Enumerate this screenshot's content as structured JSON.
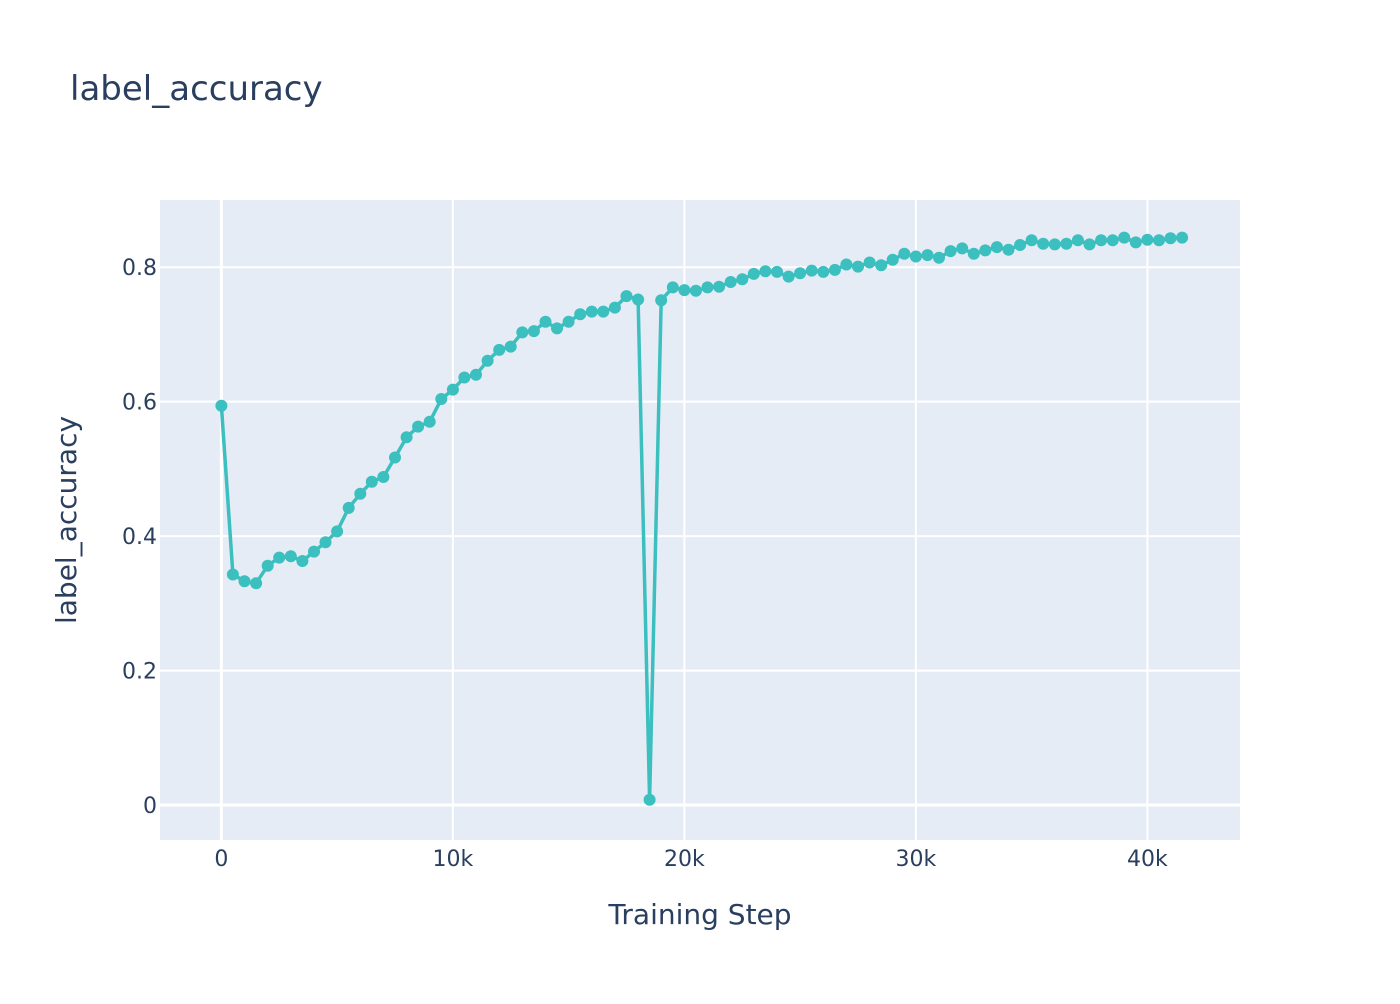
{
  "chart_data": {
    "type": "line",
    "title": "label_accuracy",
    "xlabel": "Training Step",
    "ylabel": "label_accuracy",
    "xlim": [
      -2650,
      44000
    ],
    "ylim": [
      -0.052,
      0.9
    ],
    "x_ticks": [
      0,
      10000,
      20000,
      30000,
      40000
    ],
    "x_tick_labels": [
      "0",
      "10k",
      "20k",
      "30k",
      "40k"
    ],
    "y_ticks": [
      0,
      0.2,
      0.4,
      0.6,
      0.8
    ],
    "y_tick_labels": [
      "0",
      "0.2",
      "0.4",
      "0.6",
      "0.8"
    ],
    "grid": true,
    "plot_background": "#e5ecf6",
    "grid_color": "#ffffff",
    "series": [
      {
        "mode": "lines+markers",
        "color": "#3bbfbf",
        "x": [
          0,
          500,
          1000,
          1500,
          2000,
          2500,
          3000,
          3500,
          4000,
          4500,
          5000,
          5500,
          6000,
          6500,
          7000,
          7500,
          8000,
          8500,
          9000,
          9500,
          10000,
          10500,
          11000,
          11500,
          12000,
          12500,
          13000,
          13500,
          14000,
          14500,
          15000,
          15500,
          16000,
          16500,
          17000,
          17500,
          18000,
          18500,
          19000,
          19500,
          20000,
          20500,
          21000,
          21500,
          22000,
          22500,
          23000,
          23500,
          24000,
          24500,
          25000,
          25500,
          26000,
          26500,
          27000,
          27500,
          28000,
          28500,
          29000,
          29500,
          30000,
          30500,
          31000,
          31500,
          32000,
          32500,
          33000,
          33500,
          34000,
          34500,
          35000,
          35500,
          36000,
          36500,
          37000,
          37500,
          38000,
          38500,
          39000,
          39500,
          40000,
          40500,
          41000,
          41500
        ],
        "y": [
          0.594,
          0.343,
          0.333,
          0.33,
          0.356,
          0.368,
          0.37,
          0.363,
          0.377,
          0.391,
          0.407,
          0.442,
          0.463,
          0.481,
          0.488,
          0.517,
          0.547,
          0.563,
          0.57,
          0.604,
          0.618,
          0.636,
          0.64,
          0.661,
          0.677,
          0.682,
          0.703,
          0.705,
          0.719,
          0.709,
          0.719,
          0.73,
          0.734,
          0.734,
          0.74,
          0.757,
          0.752,
          0.008,
          0.751,
          0.77,
          0.766,
          0.765,
          0.77,
          0.771,
          0.778,
          0.782,
          0.79,
          0.794,
          0.793,
          0.786,
          0.791,
          0.795,
          0.793,
          0.796,
          0.804,
          0.801,
          0.807,
          0.803,
          0.811,
          0.82,
          0.816,
          0.818,
          0.814,
          0.824,
          0.828,
          0.82,
          0.825,
          0.83,
          0.826,
          0.833,
          0.84,
          0.835,
          0.834,
          0.835,
          0.84,
          0.834,
          0.84,
          0.84,
          0.844,
          0.837,
          0.841,
          0.84,
          0.843,
          0.844
        ]
      }
    ]
  }
}
